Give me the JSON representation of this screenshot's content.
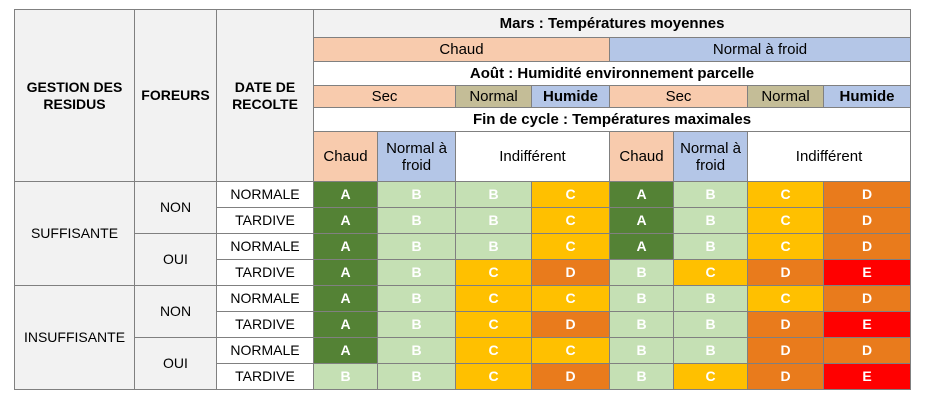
{
  "headers": {
    "gestion": "GESTION DES RESIDUS",
    "foreurs": "FOREURS",
    "date": "DATE DE RECOLTE",
    "mars_title": "Mars : Températures moyennes",
    "mars_chaud": "Chaud",
    "mars_froid": "Normal à froid",
    "aout_title": "Août : Humidité environnement parcelle",
    "aout_sec_1": "Sec",
    "aout_normal_1": "Normal",
    "aout_humide_1": "Humide",
    "aout_sec_2": "Sec",
    "aout_normal_2": "Normal",
    "aout_humide_2": "Humide",
    "fin_title": "Fin de cycle : Températures maximales",
    "fin_chaud_1": "Chaud",
    "fin_froid_1": "Normal à froid",
    "fin_indiff_1": "Indifférent",
    "fin_chaud_2": "Chaud",
    "fin_froid_2": "Normal à froid",
    "fin_indiff_2": "Indifférent"
  },
  "groups": [
    {
      "gestion": "SUFFISANTE",
      "sub": [
        {
          "foreurs": "NON",
          "rows": [
            {
              "date": "NORMALE",
              "values": [
                "A",
                "B",
                "B",
                "C",
                "A",
                "B",
                "C",
                "D"
              ]
            },
            {
              "date": "TARDIVE",
              "values": [
                "A",
                "B",
                "B",
                "C",
                "A",
                "B",
                "C",
                "D"
              ]
            }
          ]
        },
        {
          "foreurs": "OUI",
          "rows": [
            {
              "date": "NORMALE",
              "values": [
                "A",
                "B",
                "B",
                "C",
                "A",
                "B",
                "C",
                "D"
              ]
            },
            {
              "date": "TARDIVE",
              "values": [
                "A",
                "B",
                "C",
                "D",
                "B",
                "C",
                "D",
                "E"
              ]
            }
          ]
        }
      ]
    },
    {
      "gestion": "INSUFFISANTE",
      "sub": [
        {
          "foreurs": "NON",
          "rows": [
            {
              "date": "NORMALE",
              "values": [
                "A",
                "B",
                "C",
                "C",
                "B",
                "B",
                "C",
                "D"
              ]
            },
            {
              "date": "TARDIVE",
              "values": [
                "A",
                "B",
                "C",
                "D",
                "B",
                "B",
                "D",
                "E"
              ]
            }
          ]
        },
        {
          "foreurs": "OUI",
          "rows": [
            {
              "date": "NORMALE",
              "values": [
                "A",
                "B",
                "C",
                "C",
                "B",
                "B",
                "D",
                "D"
              ]
            },
            {
              "date": "TARDIVE",
              "values": [
                "B",
                "B",
                "C",
                "D",
                "B",
                "C",
                "D",
                "E"
              ]
            }
          ]
        }
      ]
    }
  ],
  "score_colors": {
    "A": "#548235",
    "B": "#c5e0b4",
    "C": "#ffc000",
    "D": "#e97b1c",
    "E": "#ff0000"
  }
}
